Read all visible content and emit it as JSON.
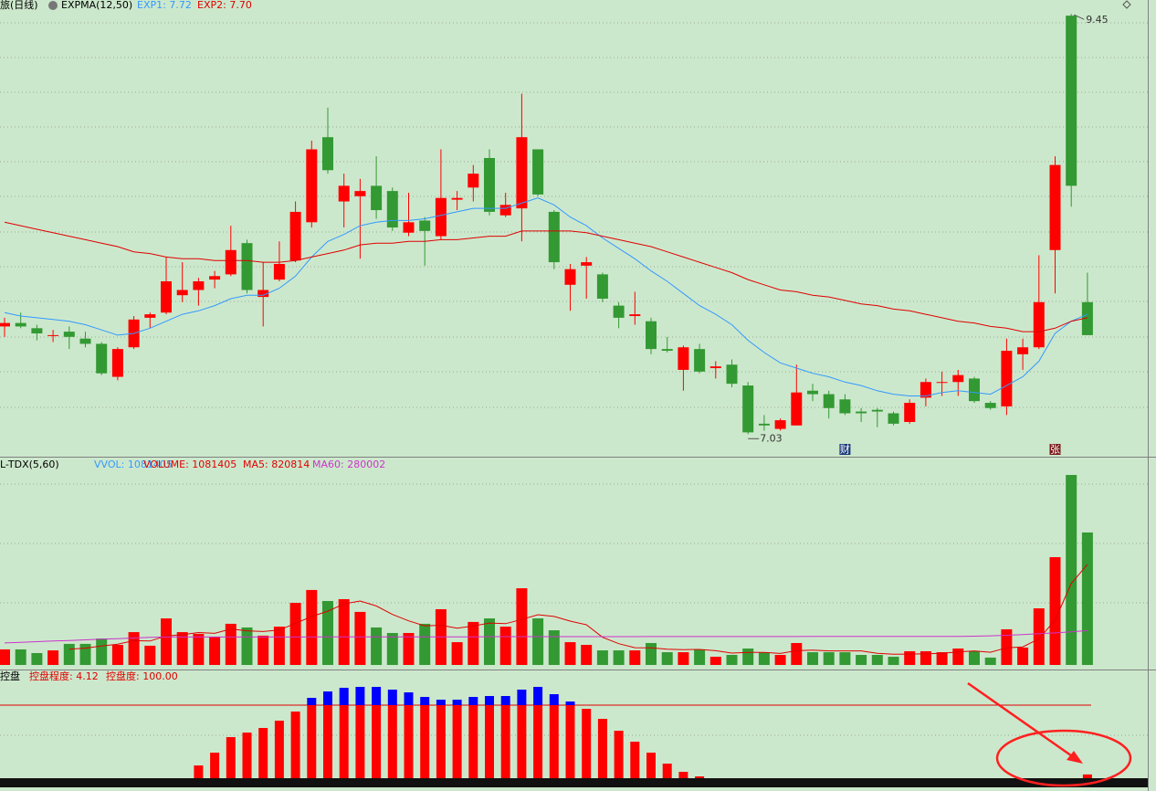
{
  "chart_data": [
    {
      "type": "candlestick",
      "title": "旅(日线)",
      "indicator": "EXPMA(12,50)",
      "up_color": "#ff0000",
      "down_color": "#339933",
      "ylim": [
        6.9,
        9.53
      ],
      "categories": [
        null,
        null,
        null,
        null,
        null,
        null,
        null,
        null,
        null,
        null,
        null,
        null,
        null,
        null,
        null,
        null,
        null,
        null,
        null,
        null,
        null,
        null,
        null,
        null,
        null,
        null,
        null,
        null,
        null,
        null,
        null,
        null,
        null,
        null,
        null,
        null,
        null,
        null,
        null,
        null,
        null,
        null,
        null,
        null,
        null,
        null,
        null,
        null,
        null,
        null,
        null,
        null,
        null,
        null,
        null,
        null,
        null,
        null,
        null,
        null,
        null,
        null,
        null,
        null,
        null,
        null,
        null,
        null
      ],
      "open": [
        7.65,
        7.67,
        7.64,
        7.6,
        7.62,
        7.58,
        7.55,
        7.36,
        7.53,
        7.7,
        7.73,
        7.83,
        7.86,
        7.92,
        7.95,
        8.13,
        7.82,
        7.92,
        8.03,
        8.25,
        8.74,
        8.37,
        8.4,
        8.46,
        8.43,
        8.19,
        8.26,
        8.17,
        8.38,
        8.45,
        8.62,
        8.29,
        8.33,
        8.67,
        8.31,
        7.89,
        8.0,
        7.95,
        7.77,
        7.71,
        7.68,
        7.52,
        7.4,
        7.52,
        7.41,
        7.43,
        7.31,
        7.09,
        7.06,
        7.08,
        7.28,
        7.26,
        7.23,
        7.16,
        7.17,
        7.15,
        7.1,
        7.24,
        7.33,
        7.33,
        7.35,
        7.21,
        7.19,
        7.49,
        7.53,
        8.09,
        9.44,
        7.79
      ],
      "high": [
        7.7,
        7.73,
        7.66,
        7.63,
        7.65,
        7.62,
        7.56,
        7.53,
        7.71,
        7.73,
        8.05,
        8.02,
        7.93,
        7.97,
        8.23,
        8.15,
        8.02,
        8.14,
        8.37,
        8.72,
        8.91,
        8.53,
        8.5,
        8.63,
        8.45,
        8.42,
        8.28,
        8.67,
        8.43,
        8.58,
        8.67,
        8.42,
        8.99,
        8.67,
        8.32,
        8.01,
        8.05,
        7.96,
        7.79,
        7.85,
        7.7,
        7.59,
        7.54,
        7.55,
        7.45,
        7.46,
        7.33,
        7.14,
        7.12,
        7.43,
        7.32,
        7.28,
        7.26,
        7.18,
        7.18,
        7.16,
        7.23,
        7.35,
        7.39,
        7.4,
        7.36,
        7.22,
        7.58,
        7.58,
        8.06,
        8.63,
        9.45,
        7.96
      ],
      "low": [
        7.59,
        7.64,
        7.57,
        7.56,
        7.52,
        7.53,
        7.37,
        7.34,
        7.52,
        7.64,
        7.72,
        7.79,
        7.77,
        7.87,
        7.94,
        7.84,
        7.65,
        7.91,
        8.02,
        8.22,
        8.53,
        8.22,
        8.04,
        8.27,
        8.2,
        8.17,
        8.0,
        8.15,
        8.32,
        8.37,
        8.29,
        8.28,
        8.14,
        8.4,
        7.98,
        7.74,
        7.81,
        7.79,
        7.64,
        7.66,
        7.49,
        7.5,
        7.28,
        7.38,
        7.35,
        7.3,
        7.03,
        7.05,
        7.05,
        7.08,
        7.22,
        7.12,
        7.14,
        7.1,
        7.07,
        7.08,
        7.09,
        7.19,
        7.25,
        7.25,
        7.21,
        7.17,
        7.14,
        7.4,
        7.52,
        7.84,
        8.34,
        7.6
      ],
      "close": [
        7.67,
        7.65,
        7.61,
        7.6,
        7.59,
        7.55,
        7.38,
        7.52,
        7.69,
        7.72,
        7.91,
        7.86,
        7.91,
        7.94,
        8.09,
        7.86,
        7.86,
        8.01,
        8.31,
        8.67,
        8.55,
        8.46,
        8.43,
        8.32,
        8.22,
        8.25,
        8.2,
        8.39,
        8.39,
        8.53,
        8.31,
        8.35,
        8.74,
        8.41,
        8.02,
        7.98,
        8.02,
        7.81,
        7.7,
        7.72,
        7.52,
        7.51,
        7.53,
        7.39,
        7.42,
        7.32,
        7.04,
        7.08,
        7.11,
        7.27,
        7.26,
        7.18,
        7.15,
        7.15,
        7.16,
        7.09,
        7.21,
        7.33,
        7.33,
        7.37,
        7.22,
        7.18,
        7.51,
        7.53,
        7.79,
        8.58,
        8.46,
        7.6
      ],
      "series": [
        {
          "name": "EXP1: 7.72",
          "color": "#3399ff",
          "values": [
            7.73,
            7.71,
            7.7,
            7.69,
            7.68,
            7.66,
            7.63,
            7.6,
            7.61,
            7.64,
            7.68,
            7.72,
            7.74,
            7.77,
            7.81,
            7.83,
            7.83,
            7.87,
            7.94,
            8.05,
            8.14,
            8.18,
            8.23,
            8.25,
            8.26,
            8.26,
            8.27,
            8.29,
            8.31,
            8.33,
            8.33,
            8.33,
            8.36,
            8.39,
            8.35,
            8.28,
            8.23,
            8.16,
            8.1,
            8.04,
            7.97,
            7.91,
            7.84,
            7.77,
            7.72,
            7.66,
            7.57,
            7.5,
            7.44,
            7.41,
            7.38,
            7.36,
            7.33,
            7.31,
            7.28,
            7.26,
            7.25,
            7.25,
            7.27,
            7.28,
            7.27,
            7.26,
            7.31,
            7.36,
            7.45,
            7.61,
            7.68,
            7.72
          ]
        },
        {
          "name": "EXP2: 7.70",
          "color": "#e00000",
          "values": [
            8.25,
            8.23,
            8.21,
            8.19,
            8.17,
            8.15,
            8.13,
            8.11,
            8.08,
            8.07,
            8.05,
            8.04,
            8.04,
            8.03,
            8.03,
            8.03,
            8.02,
            8.02,
            8.03,
            8.05,
            8.07,
            8.09,
            8.12,
            8.13,
            8.13,
            8.14,
            8.14,
            8.15,
            8.15,
            8.16,
            8.17,
            8.17,
            8.2,
            8.2,
            8.2,
            8.2,
            8.19,
            8.17,
            8.15,
            8.13,
            8.11,
            8.08,
            8.05,
            8.02,
            7.99,
            7.96,
            7.92,
            7.89,
            7.86,
            7.85,
            7.83,
            7.82,
            7.8,
            7.78,
            7.77,
            7.75,
            7.74,
            7.72,
            7.7,
            7.68,
            7.67,
            7.65,
            7.64,
            7.62,
            7.62,
            7.64,
            7.68,
            7.7
          ]
        }
      ],
      "max_label": 9.45,
      "min_label": 7.03,
      "events": [
        null,
        null,
        null,
        null,
        null,
        null,
        null,
        null,
        null,
        null,
        null,
        null,
        null,
        null,
        null,
        null,
        null,
        null,
        null,
        null,
        null,
        null,
        null,
        null,
        null,
        null,
        null,
        null,
        null,
        null,
        null,
        null,
        null,
        null,
        null,
        null,
        null,
        null,
        null,
        null,
        null,
        null,
        null,
        null,
        null,
        null,
        null,
        null,
        null,
        null,
        null,
        null,
        "财",
        null,
        null,
        null,
        null,
        null,
        null,
        null,
        null,
        null,
        null,
        null,
        null,
        "张",
        null,
        null
      ]
    },
    {
      "type": "bar",
      "title": "L-TDX(5,60)",
      "subtitle": "VVOL: 1081405",
      "ylim": [
        0,
        1700000
      ],
      "series": [
        {
          "name": "VOLUME: 1081405",
          "values": [
            127000,
            127000,
            97000,
            119000,
            172000,
            172000,
            216000,
            164000,
            268000,
            157000,
            380000,
            268000,
            254000,
            231000,
            336000,
            306000,
            239000,
            313000,
            507000,
            612000,
            522000,
            537000,
            433000,
            306000,
            261000,
            261000,
            336000,
            455000,
            186000,
            351000,
            380000,
            313000,
            626000,
            380000,
            283000,
            186000,
            164000,
            119000,
            119000,
            119000,
            179000,
            104000,
            104000,
            127000,
            67000,
            82000,
            134000,
            104000,
            82000,
            179000,
            104000,
            104000,
            104000,
            82000,
            82000,
            67000,
            112000,
            112000,
            104000,
            134000,
            112000,
            60000,
            291000,
            142000,
            462000,
            880000,
            1551000,
            1081405
          ]
        },
        {
          "name": "MA5: 820814",
          "color": "#e00000",
          "values": [
            null,
            null,
            null,
            null,
            128000,
            137000,
            155000,
            169000,
            198000,
            195000,
            237000,
            247000,
            265000,
            258000,
            294000,
            279000,
            273000,
            285000,
            340000,
            395000,
            439000,
            498000,
            522000,
            482000,
            412000,
            360000,
            319000,
            324000,
            300000,
            318000,
            342000,
            337000,
            371000,
            410000,
            396000,
            358000,
            328000,
            226000,
            174000,
            141000,
            140000,
            128000,
            125000,
            127000,
            116000,
            97000,
            103000,
            103000,
            94000,
            116000,
            121000,
            115000,
            115000,
            115000,
            95000,
            88000,
            89000,
            91000,
            95000,
            106000,
            115000,
            104000,
            140000,
            148000,
            213000,
            367000,
            665000,
            820814
          ]
        },
        {
          "name": "MA60: 280002",
          "color": "#cc33cc",
          "values": [
            180000,
            185000,
            190000,
            195000,
            200000,
            205000,
            210000,
            215000,
            220000,
            225000,
            228000,
            228000,
            228000,
            228000,
            228000,
            228000,
            228000,
            228000,
            228000,
            228000,
            230000,
            230000,
            230000,
            230000,
            230000,
            230000,
            230000,
            230000,
            230000,
            230000,
            231000,
            231000,
            231000,
            231000,
            231000,
            231000,
            231000,
            231000,
            231000,
            231000,
            232000,
            232000,
            232000,
            232000,
            232000,
            232000,
            232000,
            232000,
            232000,
            232000,
            233000,
            233000,
            233000,
            233000,
            233000,
            233000,
            233000,
            233000,
            233000,
            233000,
            235000,
            238000,
            242000,
            248000,
            255000,
            262000,
            270000,
            280002
          ]
        }
      ]
    },
    {
      "type": "bar",
      "title": "控盘",
      "subtitle": "控盘度: 100.00",
      "ylim": [
        0,
        120
      ],
      "reference_line": 80,
      "color": "#ff0000",
      "high_color": "#0000ff",
      "series": [
        {
          "name": "控盘程度: 4.12",
          "values": [
            0,
            0,
            0,
            0,
            0,
            0,
            0,
            0,
            0,
            0,
            0,
            0,
            14,
            28,
            45,
            50,
            55,
            63,
            73,
            88,
            95,
            99,
            100,
            100,
            97,
            94,
            89,
            86,
            86,
            89,
            90,
            90,
            97,
            100,
            92,
            84,
            76,
            65,
            52,
            40,
            28,
            16,
            7,
            2,
            0,
            0,
            0,
            0,
            0,
            0,
            0,
            0,
            0,
            0,
            0,
            0,
            0,
            0,
            0,
            0,
            0,
            0,
            0,
            0,
            0,
            0,
            0,
            4.12
          ]
        }
      ]
    }
  ]
}
